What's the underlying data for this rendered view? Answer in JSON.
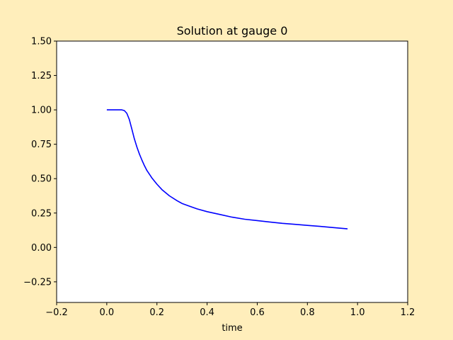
{
  "figure": {
    "background": "#ffeebb",
    "plot_background": "#ffffff"
  },
  "chart_data": {
    "type": "line",
    "title": "Solution at gauge 0",
    "xlabel": "time",
    "ylabel": "",
    "xlim": [
      -0.2,
      1.2
    ],
    "ylim": [
      -0.4,
      1.5
    ],
    "xticks": [
      -0.2,
      0.0,
      0.2,
      0.4,
      0.6,
      0.8,
      1.0,
      1.2
    ],
    "xtick_labels": [
      "−0.2",
      "0.0",
      "0.2",
      "0.4",
      "0.6",
      "0.8",
      "1.0",
      "1.2"
    ],
    "yticks": [
      -0.25,
      0.0,
      0.25,
      0.5,
      0.75,
      1.0,
      1.25,
      1.5
    ],
    "ytick_labels": [
      "−0.25",
      "0.00",
      "0.25",
      "0.50",
      "0.75",
      "1.00",
      "1.25",
      "1.50"
    ],
    "grid": false,
    "series": [
      {
        "color": "#0000ff",
        "x": [
          0.0,
          0.02,
          0.04,
          0.06,
          0.07,
          0.08,
          0.09,
          0.1,
          0.11,
          0.12,
          0.13,
          0.14,
          0.15,
          0.16,
          0.18,
          0.2,
          0.22,
          0.25,
          0.28,
          0.3,
          0.33,
          0.36,
          0.4,
          0.45,
          0.5,
          0.55,
          0.6,
          0.65,
          0.7,
          0.75,
          0.8,
          0.85,
          0.9,
          0.96
        ],
        "y": [
          1.0,
          1.0,
          1.0,
          1.0,
          0.995,
          0.975,
          0.93,
          0.86,
          0.79,
          0.73,
          0.68,
          0.635,
          0.595,
          0.56,
          0.505,
          0.46,
          0.42,
          0.375,
          0.34,
          0.32,
          0.3,
          0.28,
          0.26,
          0.24,
          0.22,
          0.205,
          0.195,
          0.185,
          0.175,
          0.168,
          0.16,
          0.153,
          0.145,
          0.135
        ]
      }
    ]
  }
}
